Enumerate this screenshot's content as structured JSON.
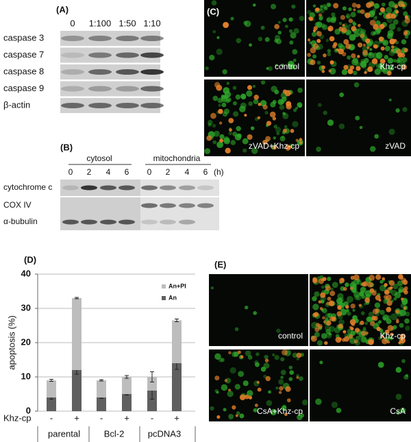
{
  "panel_a": {
    "label": "(A)",
    "columns": [
      "0",
      "1:100",
      "1:50",
      "1:10"
    ],
    "rows": [
      "caspase 3",
      "caspase 7",
      "caspase 8",
      "caspase 9",
      "β-actin"
    ]
  },
  "panel_b": {
    "label": "(B)",
    "groups": [
      "cytosol",
      "mitochondria"
    ],
    "lanes": [
      "0",
      "2",
      "4",
      "6",
      "0",
      "2",
      "4",
      "6"
    ],
    "unit": "(h)",
    "rows": [
      "cytochrome c",
      "COX IV",
      "α-bubulin"
    ]
  },
  "panel_c": {
    "label": "(C)",
    "images": [
      "control",
      "Khz-cp",
      "zVAD+Khz-cp",
      "zVAD"
    ]
  },
  "chart_data": {
    "type": "stacked_bar",
    "label": "(D)",
    "y_label": "apoptosis (%)",
    "x_label": "Khz-cp",
    "categories": [
      "-",
      "+",
      "-",
      "+",
      "-",
      "+"
    ],
    "groups": [
      "parental",
      "Bcl-2",
      "pcDNA3"
    ],
    "series": [
      {
        "name": "An",
        "color": "#5f5f5f",
        "values": [
          4,
          12,
          4,
          5,
          6,
          14
        ],
        "errors": [
          0.5,
          1.2,
          0.3,
          0.3,
          2.5,
          1.8
        ]
      },
      {
        "name": "An+PI",
        "color": "#bdbdbd",
        "values": [
          5,
          21,
          5,
          5,
          4,
          12.5
        ],
        "errors": [
          0.3,
          0.2,
          0.2,
          0.4,
          1.5,
          0.4
        ]
      }
    ],
    "ylim": [
      0,
      40
    ],
    "yticks": [
      0,
      10,
      20,
      30,
      40
    ],
    "grid": true
  },
  "panel_e": {
    "label": "(E)",
    "images": [
      "control",
      "Khz-cp",
      "CsA+Khz-cp",
      "CsA"
    ]
  }
}
